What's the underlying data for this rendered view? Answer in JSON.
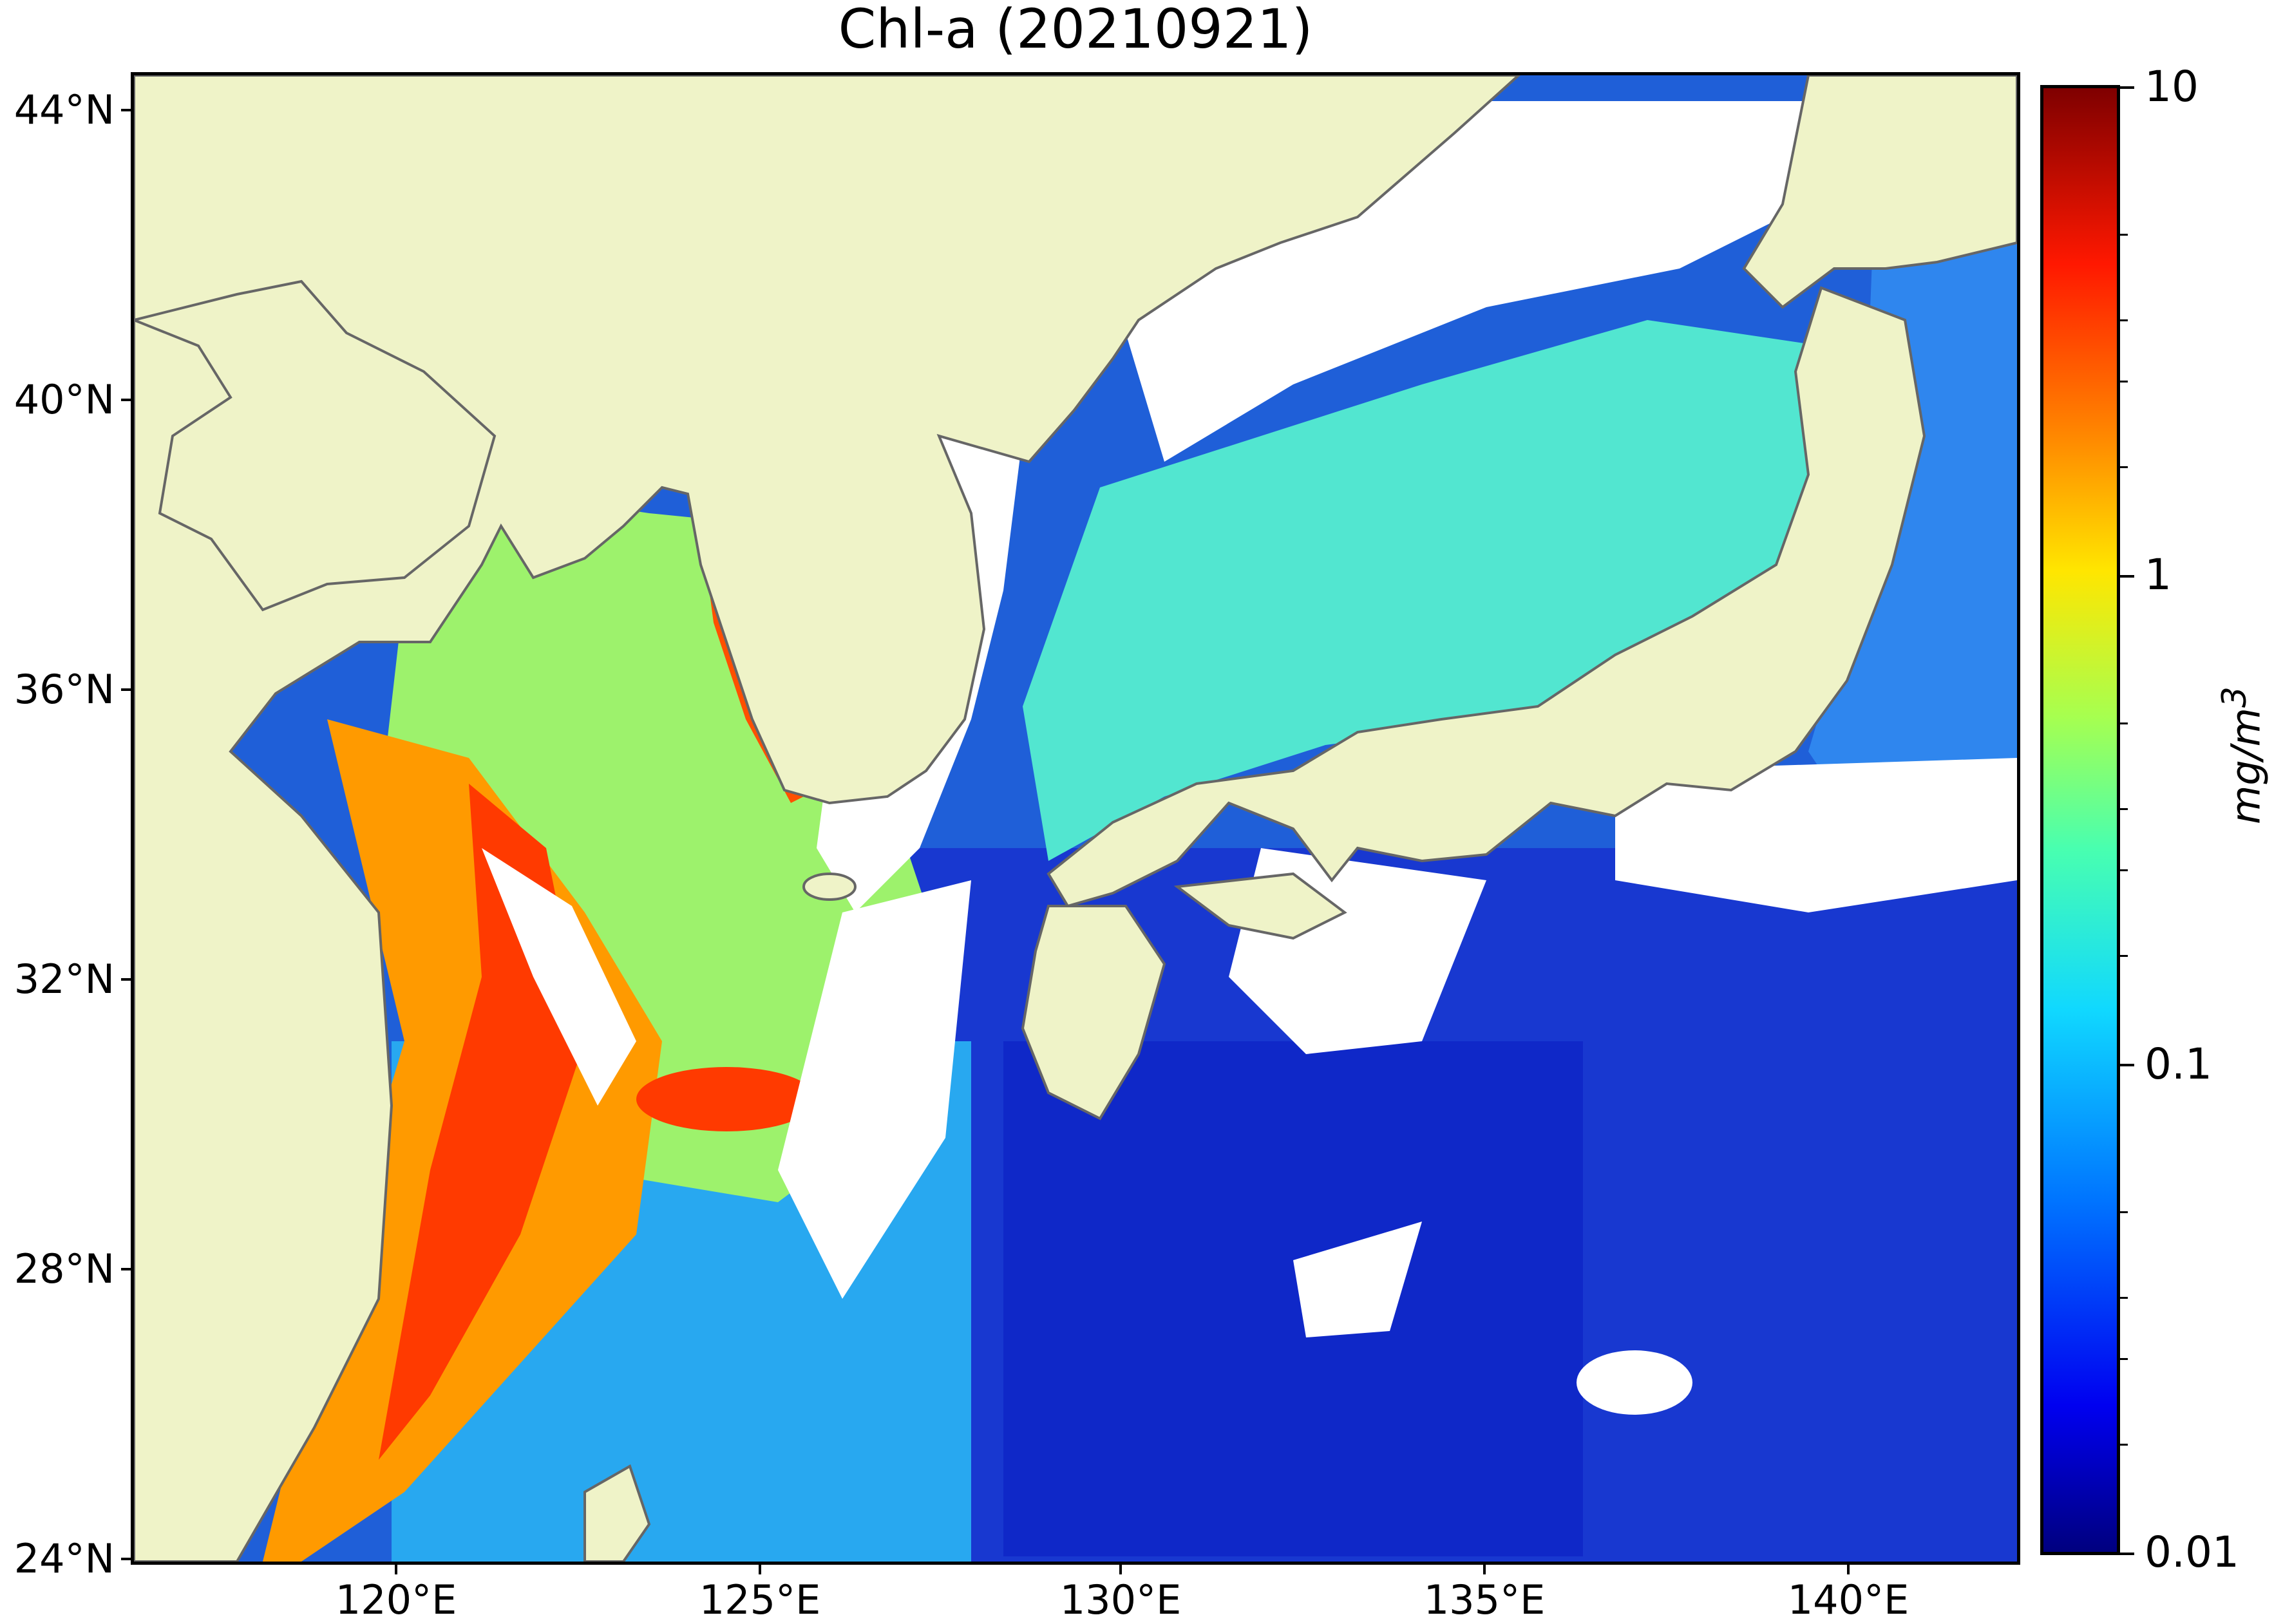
{
  "title": "Chl-a (20210921)",
  "map": {
    "variable": "Chl-a",
    "date": "20210921",
    "land_color": "#eff3c8",
    "coast_color": "#666666",
    "no_data_color": "#ffffff",
    "lat_range": [
      24,
      44.5
    ],
    "lon_range": [
      116.5,
      142.9
    ],
    "lat_ticks": [
      "44°N",
      "40°N",
      "36°N",
      "32°N",
      "28°N",
      "24°N"
    ],
    "lon_ticks": [
      "120°E",
      "125°E",
      "130°E",
      "135°E",
      "140°E"
    ]
  },
  "colorbar": {
    "labels": [
      "10",
      "1",
      "0.1",
      "0.01"
    ],
    "title_prefix": "mg/m",
    "title_sup": "3",
    "scale": "log",
    "range": [
      0.01,
      10
    ],
    "colormap": "jet"
  }
}
